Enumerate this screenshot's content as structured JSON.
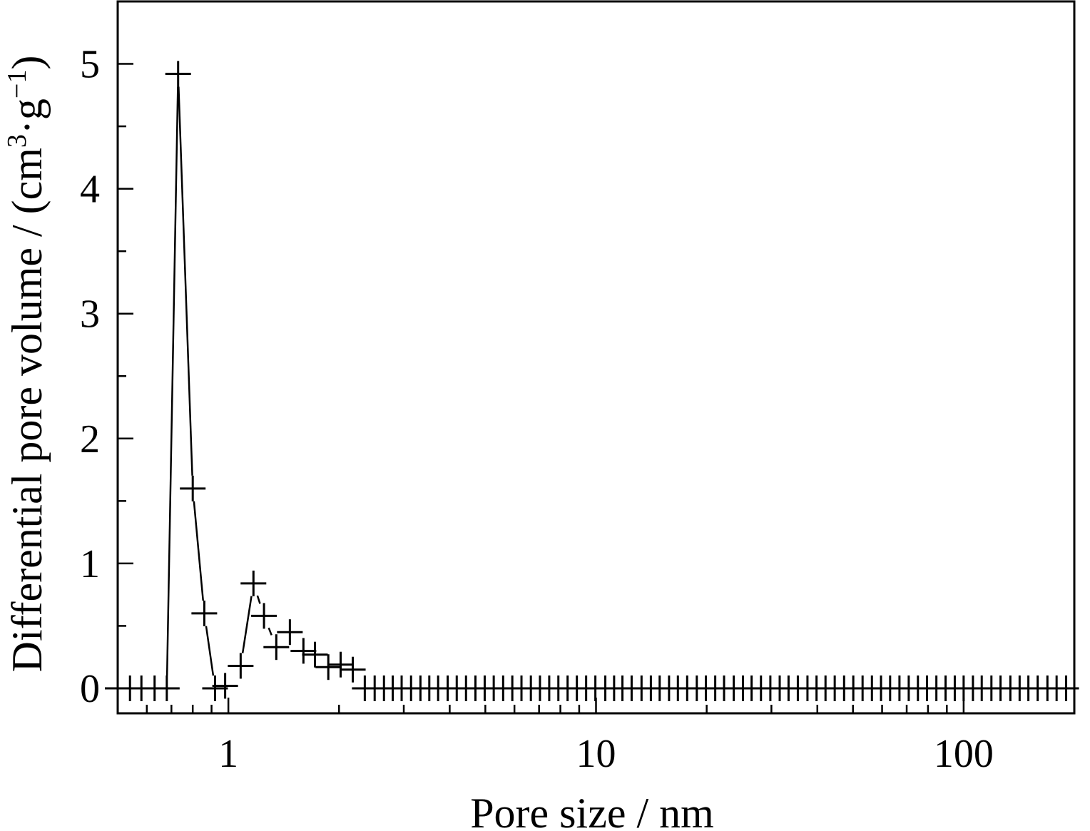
{
  "chart_data": {
    "type": "scatter",
    "xscale": "log",
    "xlabel": "Pore size / nm",
    "ylabel": "Differential pore volume / (cm",
    "ylabel_sup1": "3",
    "ylabel_mid": "·g",
    "ylabel_sup2": "−1",
    "ylabel_end": ")",
    "xlim": [
      0.5,
      200
    ],
    "ylim": [
      -0.2,
      5.5
    ],
    "x_ticks": [
      1,
      10,
      100
    ],
    "x_tick_labels": [
      "1",
      "10",
      "100"
    ],
    "y_ticks": [
      0,
      1,
      2,
      3,
      4,
      5
    ],
    "y_tick_labels": [
      "0",
      "1",
      "2",
      "3",
      "4",
      "5"
    ],
    "grid": false,
    "legend": "none",
    "marker": "plus",
    "line_color": "#000000",
    "series": [
      {
        "x": [
          0.5,
          0.54,
          0.58,
          0.63,
          0.68,
          0.73,
          0.8,
          0.86,
          0.92,
          0.98,
          1.08,
          1.17,
          1.25,
          1.35,
          1.47,
          1.6,
          1.72,
          1.87,
          2.02,
          2.18,
          2.35,
          2.5,
          2.65,
          2.8,
          2.96,
          3.14,
          3.33,
          3.52,
          3.72,
          3.95,
          4.18,
          4.43,
          4.7,
          4.98,
          5.27,
          5.59,
          5.92,
          6.27,
          6.65,
          7.04,
          7.46,
          7.9,
          8.37,
          8.87,
          9.4,
          9.96,
          10.6,
          11.2,
          11.8,
          12.5,
          13.3,
          14.1,
          14.9,
          15.8,
          16.7,
          17.7,
          18.8,
          19.9,
          21.1,
          22.3,
          23.7,
          25.1,
          26.5,
          28.1,
          29.8,
          31.6,
          33.4,
          35.4,
          37.6,
          39.8,
          42.1,
          44.6,
          47.3,
          50.1,
          53.1,
          56.3,
          59.6,
          63.1,
          66.9,
          70.9,
          75.1,
          79.5,
          84.3,
          89.3,
          94.6,
          100,
          106,
          112,
          119,
          126,
          134,
          142,
          150,
          159,
          169,
          179,
          190
        ],
        "y": [
          0,
          0,
          0,
          0,
          0,
          4.92,
          1.6,
          0.6,
          0,
          0.02,
          0.18,
          0.84,
          0.58,
          0.33,
          0.45,
          0.3,
          0.27,
          0.17,
          0.19,
          0.15,
          0,
          0,
          0,
          0,
          0,
          0,
          0,
          0,
          0,
          0,
          0,
          0,
          0,
          0,
          0,
          0,
          0,
          0,
          0,
          0,
          0,
          0,
          0,
          0,
          0,
          0,
          0,
          0,
          0,
          0,
          0,
          0,
          0,
          0,
          0,
          0,
          0,
          0,
          0,
          0,
          0,
          0,
          0,
          0,
          0,
          0,
          0,
          0,
          0,
          0,
          0,
          0,
          0,
          0,
          0,
          0,
          0,
          0,
          0,
          0,
          0,
          0,
          0,
          0,
          0,
          0,
          0,
          0,
          0,
          0,
          0,
          0,
          0,
          0,
          0,
          0,
          0
        ]
      }
    ]
  }
}
